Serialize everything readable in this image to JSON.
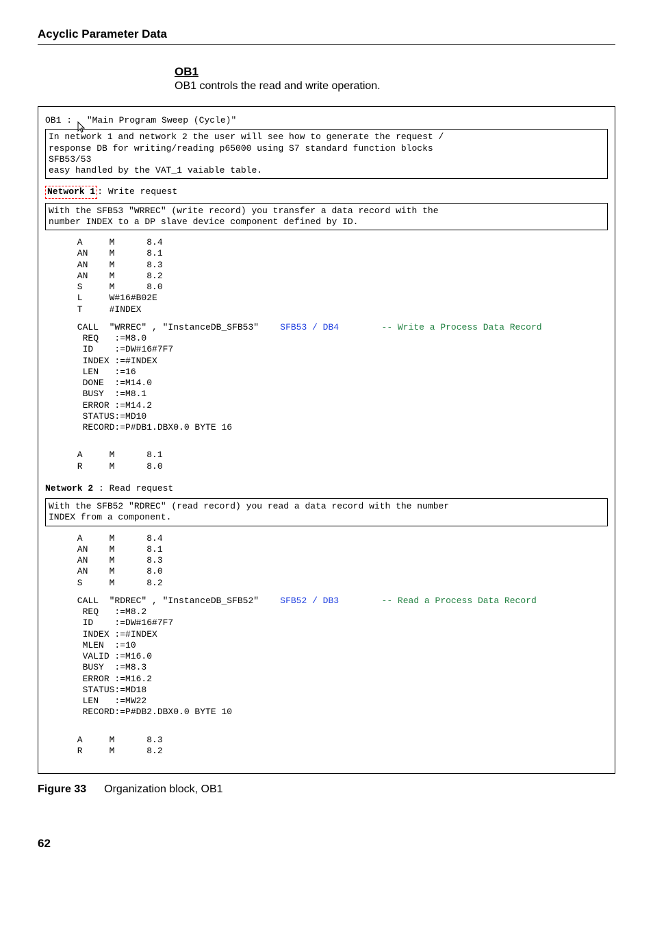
{
  "header": "Acyclic Parameter Data",
  "section": {
    "title": "OB1",
    "desc": "OB1 controls the read and write operation."
  },
  "ob1_line": {
    "prefix": "OB1 : ",
    "title": "\"Main Program Sweep (Cycle)\""
  },
  "intro_box": "In network 1 and network 2 the user will see how to generate the request /\nresponse DB for writing/reading p65000 using S7 standard function blocks\nSFB53/53\neasy handled by the VAT_1 vaiable table.",
  "net1": {
    "label": "Network 1",
    "suffix": ": Write request",
    "box": "With the SFB53 \"WRREC\" (write record) you transfer a data record with the\nnumber INDEX to a DP slave device component defined by ID.",
    "pre_rows": [
      {
        "op": "A",
        "opd": "M",
        "arg": "8.4"
      },
      {
        "op": "AN",
        "opd": "M",
        "arg": "8.1"
      },
      {
        "op": "AN",
        "opd": "M",
        "arg": "8.3"
      },
      {
        "op": "AN",
        "opd": "M",
        "arg": "8.2"
      },
      {
        "op": "S",
        "opd": "M",
        "arg": "8.0"
      },
      {
        "op": "L",
        "argw": "W#16#B02E"
      },
      {
        "op": "T",
        "argw": "#INDEX"
      }
    ],
    "call": {
      "kw": "CALL",
      "args": "\"WRREC\" , \"InstanceDB_SFB53\"",
      "sfb": "SFB53 / DB4",
      "comment": "-- Write a Process Data Record",
      "params": [
        {
          "l": "REQ",
          "v": ":=M8.0"
        },
        {
          "l": "ID",
          "v": ":=DW#16#7F7"
        },
        {
          "l": "INDEX",
          "v": ":=#INDEX"
        },
        {
          "l": "LEN",
          "v": ":=16"
        },
        {
          "l": "DONE",
          "v": ":=M14.0"
        },
        {
          "l": "BUSY",
          "v": ":=M8.1"
        },
        {
          "l": "ERROR",
          "v": ":=M14.2"
        },
        {
          "l": "STATUS",
          "v": ":=MD10"
        },
        {
          "l": "RECORD",
          "v": ":=P#DB1.DBX0.0 BYTE 16"
        }
      ]
    },
    "post_rows": [
      {
        "op": "A",
        "opd": "M",
        "arg": "8.1"
      },
      {
        "op": "R",
        "opd": "M",
        "arg": "8.0"
      }
    ]
  },
  "net2": {
    "label": "Network 2",
    "suffix": " : Read request",
    "box": "With the SFB52 \"RDREC\" (read record) you read a data record with the number\nINDEX from a component.",
    "pre_rows": [
      {
        "op": "A",
        "opd": "M",
        "arg": "8.4"
      },
      {
        "op": "AN",
        "opd": "M",
        "arg": "8.1"
      },
      {
        "op": "AN",
        "opd": "M",
        "arg": "8.3"
      },
      {
        "op": "AN",
        "opd": "M",
        "arg": "8.0"
      },
      {
        "op": "S",
        "opd": "M",
        "arg": "8.2"
      }
    ],
    "call": {
      "kw": "CALL",
      "args": "\"RDREC\" , \"InstanceDB_SFB52\"",
      "sfb": "SFB52 / DB3",
      "comment": "-- Read a Process Data Record",
      "params": [
        {
          "l": "REQ",
          "v": ":=M8.2"
        },
        {
          "l": "ID",
          "v": ":=DW#16#7F7"
        },
        {
          "l": "INDEX",
          "v": ":=#INDEX"
        },
        {
          "l": "MLEN",
          "v": ":=10"
        },
        {
          "l": "VALID",
          "v": ":=M16.0"
        },
        {
          "l": "BUSY",
          "v": ":=M8.3"
        },
        {
          "l": "ERROR",
          "v": ":=M16.2"
        },
        {
          "l": "STATUS",
          "v": ":=MD18"
        },
        {
          "l": "LEN",
          "v": ":=MW22"
        },
        {
          "l": "RECORD",
          "v": ":=P#DB2.DBX0.0 BYTE 10"
        }
      ]
    },
    "post_rows": [
      {
        "op": "A",
        "opd": "M",
        "arg": "8.3"
      },
      {
        "op": "R",
        "opd": "M",
        "arg": "8.2"
      }
    ]
  },
  "figure": {
    "label": "Figure 33",
    "text": "Organization block, OB1"
  },
  "page_number": "62"
}
